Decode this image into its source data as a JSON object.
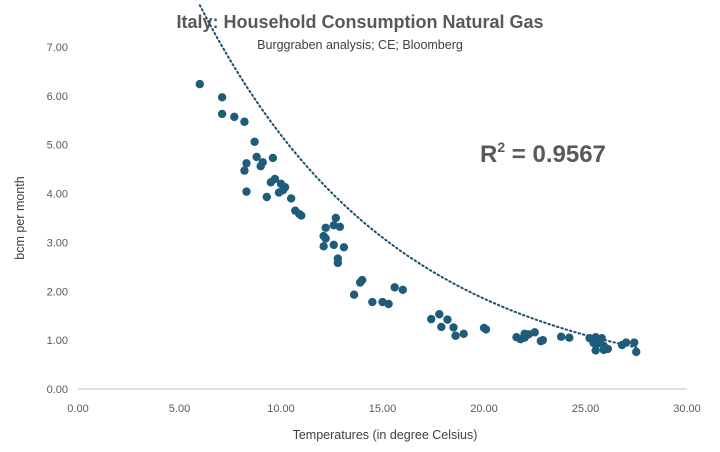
{
  "chart_data": {
    "type": "scatter",
    "title": "Italy: Household Consumption Natural Gas",
    "subtitle": "Burggraben analysis; CE; Bloomberg",
    "xlabel": "Temperatures (in degree Celsius)",
    "ylabel": "bcm per month",
    "xlim": [
      0,
      30
    ],
    "ylim": [
      0,
      7
    ],
    "xticks": [
      "0.00",
      "5.00",
      "10.00",
      "15.00",
      "20.00",
      "25.00",
      "30.00"
    ],
    "yticks": [
      "0.00",
      "1.00",
      "2.00",
      "3.00",
      "4.00",
      "5.00",
      "6.00",
      "7.00"
    ],
    "annotation": {
      "base": "R",
      "sup": "2",
      "rest": " = 0.9567"
    },
    "marker_color": "#1f5c7a",
    "trend_color": "#1f4e68",
    "grid": false,
    "trendline": {
      "type": "exponential",
      "a": 14.6,
      "b": -0.1033,
      "x_range": [
        6.0,
        27.5
      ]
    },
    "points": [
      [
        6.0,
        6.24
      ],
      [
        7.1,
        5.97
      ],
      [
        7.1,
        5.63
      ],
      [
        7.7,
        5.57
      ],
      [
        8.2,
        5.47
      ],
      [
        8.7,
        5.06
      ],
      [
        9.6,
        4.73
      ],
      [
        8.3,
        4.62
      ],
      [
        8.8,
        4.75
      ],
      [
        9.1,
        4.64
      ],
      [
        8.2,
        4.47
      ],
      [
        9.0,
        4.56
      ],
      [
        9.5,
        4.23
      ],
      [
        9.7,
        4.3
      ],
      [
        10.0,
        4.2
      ],
      [
        10.2,
        4.13
      ],
      [
        9.9,
        4.02
      ],
      [
        10.1,
        4.07
      ],
      [
        8.3,
        4.04
      ],
      [
        9.3,
        3.93
      ],
      [
        10.5,
        3.9
      ],
      [
        10.7,
        3.65
      ],
      [
        10.9,
        3.58
      ],
      [
        11.0,
        3.55
      ],
      [
        12.7,
        3.5
      ],
      [
        12.2,
        3.3
      ],
      [
        12.6,
        3.35
      ],
      [
        12.9,
        3.32
      ],
      [
        12.1,
        3.13
      ],
      [
        12.2,
        3.08
      ],
      [
        12.6,
        2.95
      ],
      [
        13.1,
        2.9
      ],
      [
        12.1,
        2.92
      ],
      [
        12.8,
        2.67
      ],
      [
        12.8,
        2.58
      ],
      [
        14.0,
        2.23
      ],
      [
        13.9,
        2.18
      ],
      [
        15.6,
        2.08
      ],
      [
        16.0,
        2.03
      ],
      [
        13.6,
        1.93
      ],
      [
        14.5,
        1.78
      ],
      [
        15.0,
        1.78
      ],
      [
        15.3,
        1.74
      ],
      [
        17.8,
        1.53
      ],
      [
        17.4,
        1.43
      ],
      [
        18.2,
        1.42
      ],
      [
        17.9,
        1.27
      ],
      [
        18.5,
        1.26
      ],
      [
        20.0,
        1.25
      ],
      [
        20.1,
        1.22
      ],
      [
        19.0,
        1.13
      ],
      [
        18.6,
        1.09
      ],
      [
        21.6,
        1.06
      ],
      [
        22.0,
        1.13
      ],
      [
        22.2,
        1.12
      ],
      [
        22.5,
        1.16
      ],
      [
        21.8,
        1.02
      ],
      [
        22.0,
        1.05
      ],
      [
        22.8,
        0.98
      ],
      [
        22.9,
        1.0
      ],
      [
        23.8,
        1.07
      ],
      [
        24.2,
        1.05
      ],
      [
        25.2,
        1.04
      ],
      [
        25.5,
        1.06
      ],
      [
        25.8,
        1.04
      ],
      [
        25.4,
        0.94
      ],
      [
        25.6,
        0.93
      ],
      [
        25.9,
        0.88
      ],
      [
        25.5,
        0.79
      ],
      [
        26.1,
        0.82
      ],
      [
        26.8,
        0.9
      ],
      [
        27.0,
        0.95
      ],
      [
        27.4,
        0.95
      ],
      [
        27.5,
        0.76
      ],
      [
        25.9,
        0.8
      ]
    ]
  }
}
